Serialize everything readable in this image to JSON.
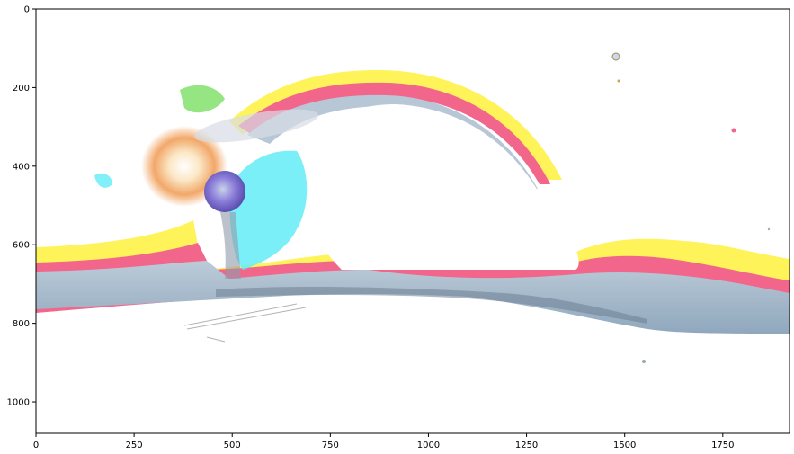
{
  "chart_data": {
    "type": "image",
    "title": "",
    "xlabel": "",
    "ylabel": "",
    "xlim": [
      0,
      1920
    ],
    "ylim": [
      1080,
      0
    ],
    "y_axis_inverted": true,
    "grid": false,
    "x_ticks": [
      0,
      250,
      500,
      750,
      1000,
      1250,
      1500,
      1750
    ],
    "x_tick_labels": [
      "0",
      "250",
      "500",
      "750",
      "1000",
      "1250",
      "1500",
      "1750"
    ],
    "y_ticks": [
      0,
      200,
      400,
      600,
      800,
      1000
    ],
    "y_tick_labels": [
      "0",
      "200",
      "400",
      "600",
      "800",
      "1000"
    ],
    "image_content": "color-inverted/posterized space scene with planet and glowing arc",
    "colors": {
      "yellow": "#fff35a",
      "pink": "#f2668c",
      "blue_gray": "#a9b9c9",
      "cyan": "#63ecf7",
      "green": "#7be063",
      "orange_glow": "#f7b067",
      "purple": "#8a6df0",
      "axis": "#000000"
    }
  }
}
